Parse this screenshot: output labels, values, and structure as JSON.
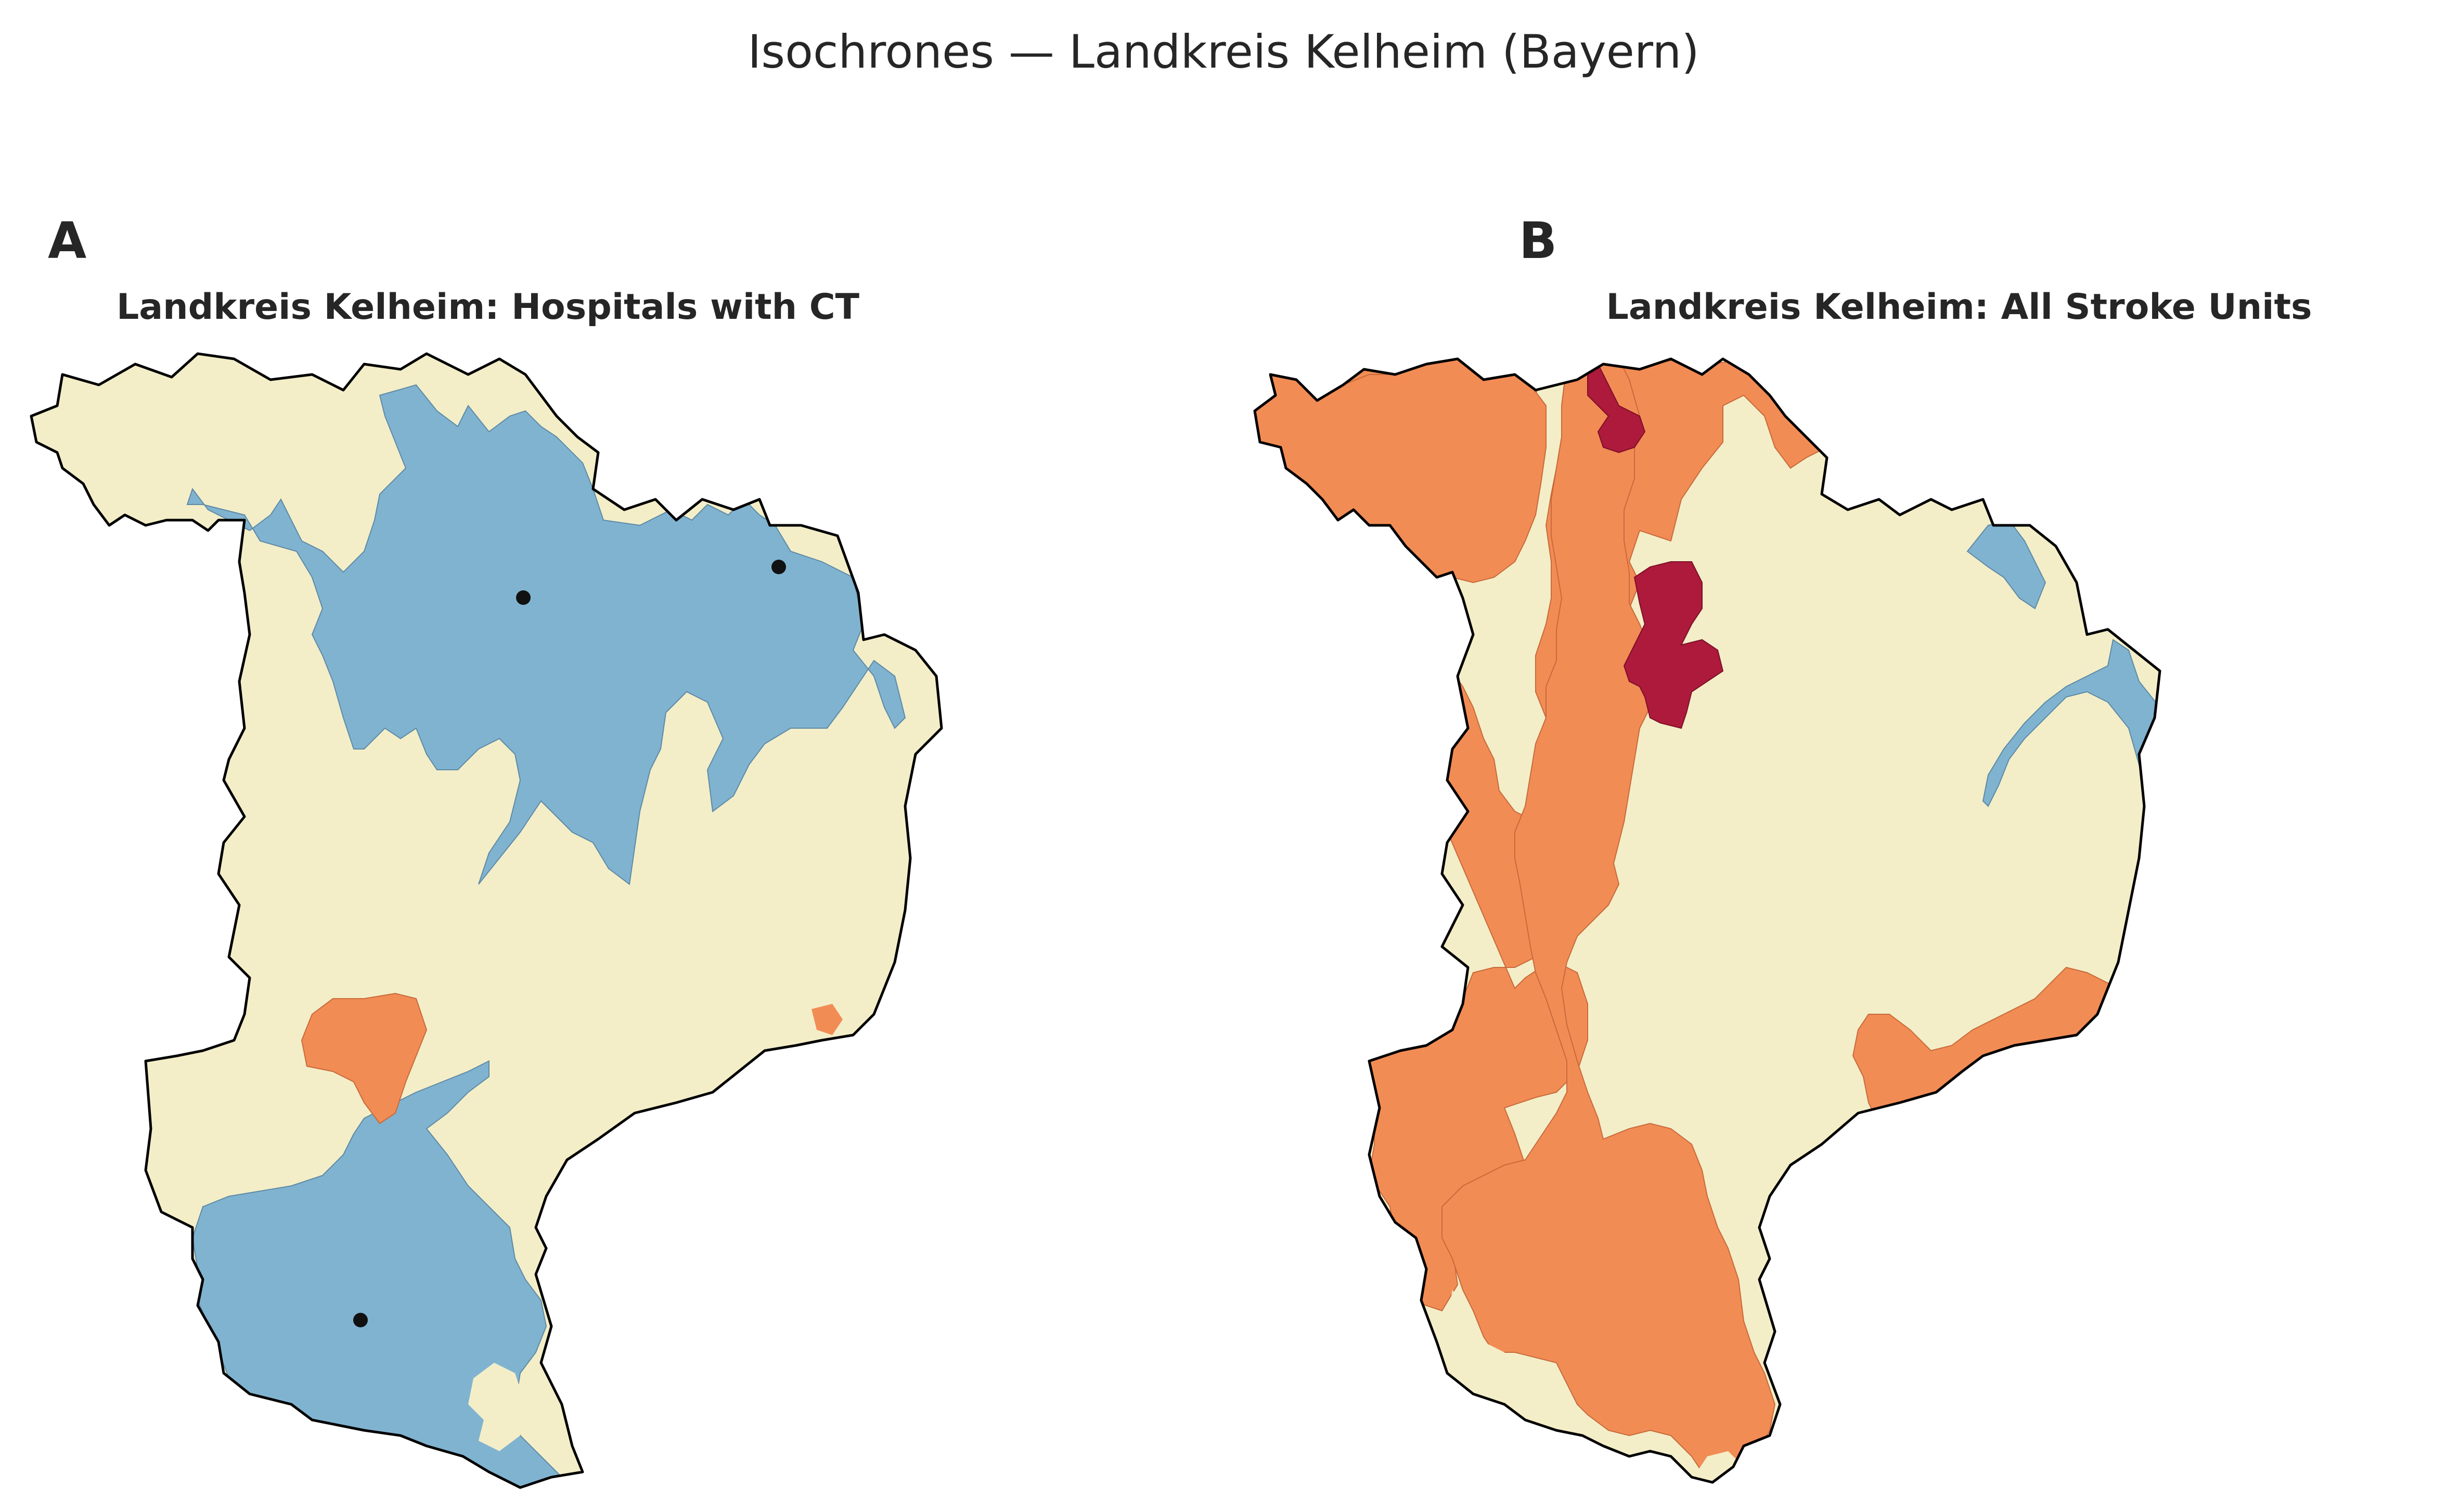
{
  "figure": {
    "title": "Isochrones — Landkreis Kelheim (Bayern)"
  },
  "panels": [
    {
      "letter": "A",
      "title": "Landkreis Kelheim: Hospitals with CT",
      "facility_marker_count": 3
    },
    {
      "letter": "B",
      "title": "Landkreis Kelheim: All Stroke Units",
      "facility_marker_count": 0
    }
  ],
  "colors": {
    "background_zone": "#f3eec8",
    "zone_blue": "#80b3d0",
    "zone_orange": "#f28c55",
    "zone_crimson": "#ad1a3c",
    "boundary": "#000000",
    "facility_marker": "#111111"
  },
  "map_data": {
    "district": "Landkreis Kelheim",
    "state": "Bayern",
    "zone_colors": [
      "#80b3d0",
      "#f3eec8",
      "#f28c55",
      "#ad1a3c"
    ]
  }
}
